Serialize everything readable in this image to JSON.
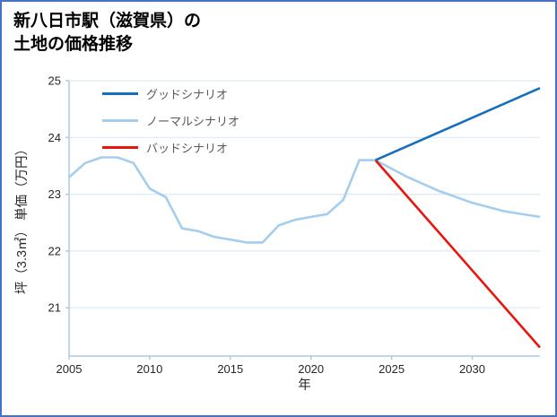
{
  "page": {
    "title_lines": [
      "新八日市駅（滋賀県）の",
      "土地の価格推移"
    ]
  },
  "colors": {
    "page_border": "#4472c4",
    "grid": "#dde9f6",
    "spine": "#b0c9e4",
    "tick_text": "#262626",
    "legend_text": "#595959",
    "title_text": "#000000"
  },
  "chart_data": {
    "type": "line",
    "title": "新八日市駅（滋賀県）の土地の価格推移",
    "xlabel": "年",
    "ylabel": "坪（3.3㎡） 単価（万円）",
    "xlim": [
      2005,
      2034.2
    ],
    "ylim": [
      20.15,
      25
    ],
    "xticks": [
      2005,
      2010,
      2015,
      2020,
      2025,
      2030
    ],
    "yticks": [
      21,
      22,
      23,
      24,
      25
    ],
    "grid": true,
    "grid_orientation": "horizontal",
    "legend_position": "upper-left",
    "series": [
      {
        "id": "good",
        "name": "グッドシナリオ",
        "color": "#1a6fbd",
        "x": [
          2024,
          2034.2
        ],
        "values": [
          23.6,
          24.87
        ]
      },
      {
        "id": "normal",
        "name": "ノーマルシナリオ",
        "color": "#a5cdee",
        "x": [
          2005,
          2006,
          2007,
          2008,
          2009,
          2010,
          2011,
          2012,
          2013,
          2014,
          2015,
          2016,
          2017,
          2018,
          2019,
          2020,
          2021,
          2022,
          2023,
          2024,
          2026,
          2028,
          2030,
          2032,
          2034.2
        ],
        "values": [
          23.3,
          23.55,
          23.65,
          23.65,
          23.55,
          23.1,
          22.95,
          22.4,
          22.35,
          22.25,
          22.2,
          22.15,
          22.15,
          22.45,
          22.55,
          22.6,
          22.65,
          22.9,
          23.6,
          23.6,
          23.3,
          23.05,
          22.85,
          22.7,
          22.6
        ]
      },
      {
        "id": "bad",
        "name": "バッドシナリオ",
        "color": "#e8150e",
        "x": [
          2024,
          2034.2
        ],
        "values": [
          23.6,
          20.3
        ]
      }
    ]
  }
}
